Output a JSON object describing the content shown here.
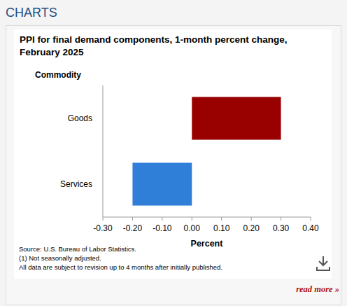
{
  "header": "CHARTS",
  "link": "read more »",
  "chart_data": {
    "type": "bar",
    "orientation": "horizontal",
    "title": "PPI for final demand components, 1-month percent change, February 2025",
    "y_label": "Commodity",
    "x_label": "Percent",
    "categories": [
      "Goods",
      "Services"
    ],
    "values": [
      0.3,
      -0.2
    ],
    "colors": [
      "#990000",
      "#2f7ed8"
    ],
    "xlim": [
      -0.3,
      0.4
    ],
    "xticks": [
      {
        "value": -0.3,
        "label": "-0.30"
      },
      {
        "value": -0.2,
        "label": "-0.20"
      },
      {
        "value": -0.1,
        "label": "-0.10"
      },
      {
        "value": 0,
        "label": "0.00"
      },
      {
        "value": 0.1,
        "label": "0.10"
      },
      {
        "value": 0.2,
        "label": "0.20"
      },
      {
        "value": 0.3,
        "label": "0.30"
      },
      {
        "value": 0.4,
        "label": "0.40"
      }
    ],
    "grid": false,
    "notes": [
      "Source: U.S. Bureau of Labor Statistics.",
      "(1) Not seasonally adjusted.",
      "All data are subject to revision up to 4 months after initially published."
    ]
  }
}
